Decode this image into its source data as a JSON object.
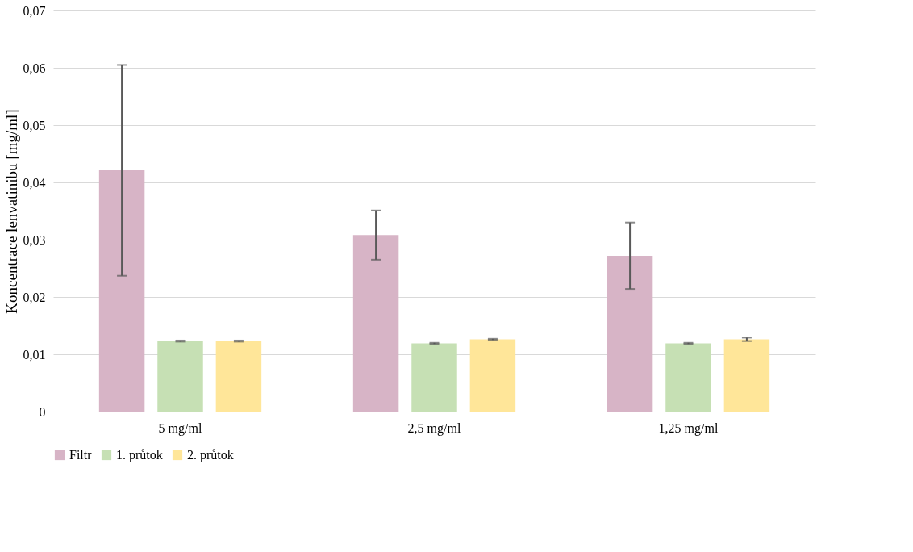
{
  "chart_data": {
    "type": "bar",
    "ylabel": "Koncentrace lenvatinibu [mg/ml]",
    "categories": [
      "5 mg/ml",
      "2,5 mg/ml",
      "1,25 mg/ml"
    ],
    "series": [
      {
        "name": "Filtr",
        "color": "#d7b4c6",
        "values": [
          0.0421,
          0.0308,
          0.0272
        ],
        "errors": [
          0.0184,
          0.0043,
          0.0058
        ]
      },
      {
        "name": "1. průtok",
        "color": "#c6e0b4",
        "values": [
          0.0123,
          0.0119,
          0.0119
        ],
        "errors": [
          0.0001,
          0.0001,
          0.0001
        ]
      },
      {
        "name": "2. průtok",
        "color": "#ffe699",
        "values": [
          0.0123,
          0.0126,
          0.0126
        ],
        "errors": [
          0.0001,
          0.0001,
          0.0003
        ]
      }
    ],
    "ylim": [
      0,
      0.07
    ],
    "yticks": [
      0,
      {
        "value": 0.01,
        "label": "0,01"
      },
      {
        "value": 0.02,
        "label": "0,02"
      },
      {
        "value": 0.03,
        "label": "0,03"
      },
      {
        "value": 0.04,
        "label": "0,04"
      },
      {
        "value": 0.05,
        "label": "0,05"
      },
      {
        "value": 0.06,
        "label": "0,06"
      },
      {
        "value": 0.07,
        "label": "0,07"
      }
    ],
    "grid": "y",
    "legend": "bottom"
  }
}
